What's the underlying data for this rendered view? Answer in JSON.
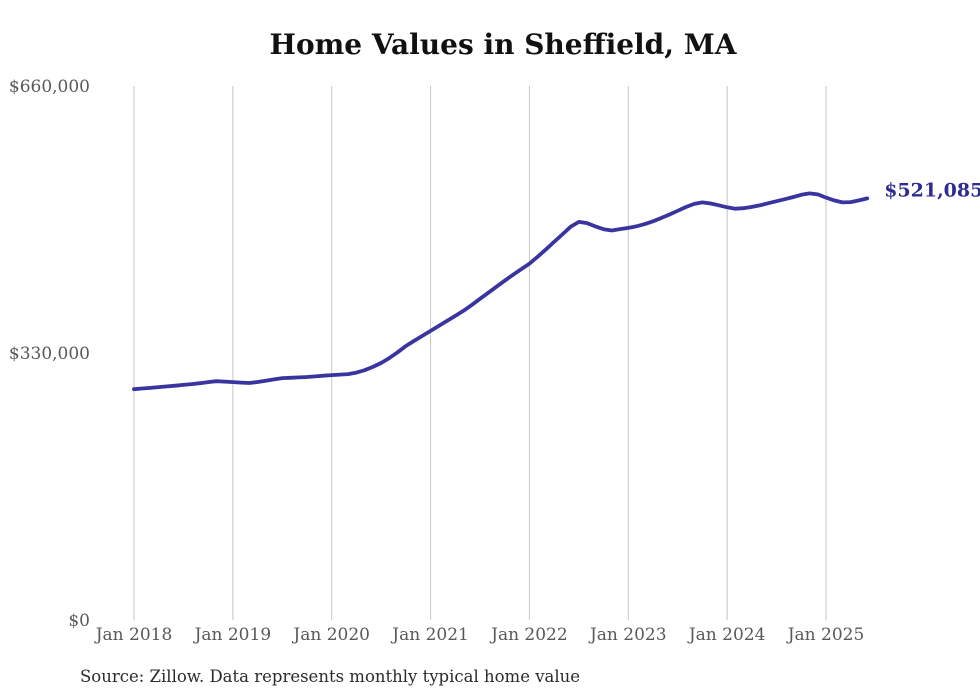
{
  "chart_data": {
    "type": "line",
    "title": "Home Values in Sheffield, MA",
    "source_note": "Source: Zillow. Data represents monthly typical home value",
    "end_label": "$521,085",
    "latest_value": 521085,
    "ylim": [
      0,
      660000
    ],
    "grid": "vertical-only",
    "legend": "none",
    "colors": {
      "line": "#3a34a0",
      "end_label": "#2f2b91",
      "grid": "#c6c6c6",
      "tick_label": "#595959",
      "title": "#111111",
      "source": "#2b2b2b",
      "background": "#ffffff"
    },
    "yticks": [
      {
        "label": "$0",
        "value": 0
      },
      {
        "label": "$330,000",
        "value": 330000
      },
      {
        "label": "$660,000",
        "value": 660000
      }
    ],
    "xticks": [
      {
        "label": "Jan 2018",
        "month_index": 0
      },
      {
        "label": "Jan 2019",
        "month_index": 12
      },
      {
        "label": "Jan 2020",
        "month_index": 24
      },
      {
        "label": "Jan 2021",
        "month_index": 36
      },
      {
        "label": "Jan 2022",
        "month_index": 48
      },
      {
        "label": "Jan 2023",
        "month_index": 60
      },
      {
        "label": "Jan 2024",
        "month_index": 72
      },
      {
        "label": "Jan 2025",
        "month_index": 84
      }
    ],
    "series": [
      {
        "name": "Monthly typical home value",
        "start_month": "2018-01",
        "end_month": "2025-06",
        "frequency": "monthly",
        "values": [
          285300,
          286100,
          286900,
          287800,
          288700,
          289600,
          290600,
          291600,
          292700,
          294000,
          295200,
          294600,
          294000,
          293400,
          292900,
          294200,
          295800,
          297400,
          299000,
          299400,
          299800,
          300300,
          301100,
          301900,
          302700,
          303300,
          303900,
          305800,
          308800,
          312800,
          317600,
          323800,
          330900,
          338700,
          344900,
          351100,
          357300,
          363500,
          369700,
          375900,
          382100,
          389500,
          397000,
          404400,
          411900,
          419400,
          426600,
          433600,
          440400,
          449000,
          458100,
          467300,
          476600,
          486000,
          492000,
          490500,
          486500,
          483000,
          481400,
          483100,
          484600,
          486600,
          489300,
          492800,
          496900,
          501200,
          505800,
          510400,
          514300,
          516100,
          514800,
          512600,
          510100,
          508400,
          509000,
          510600,
          512600,
          515100,
          517600,
          520100,
          522700,
          525500,
          527200,
          526000,
          522100,
          518600,
          516100,
          516500,
          518600,
          521085
        ]
      }
    ]
  }
}
